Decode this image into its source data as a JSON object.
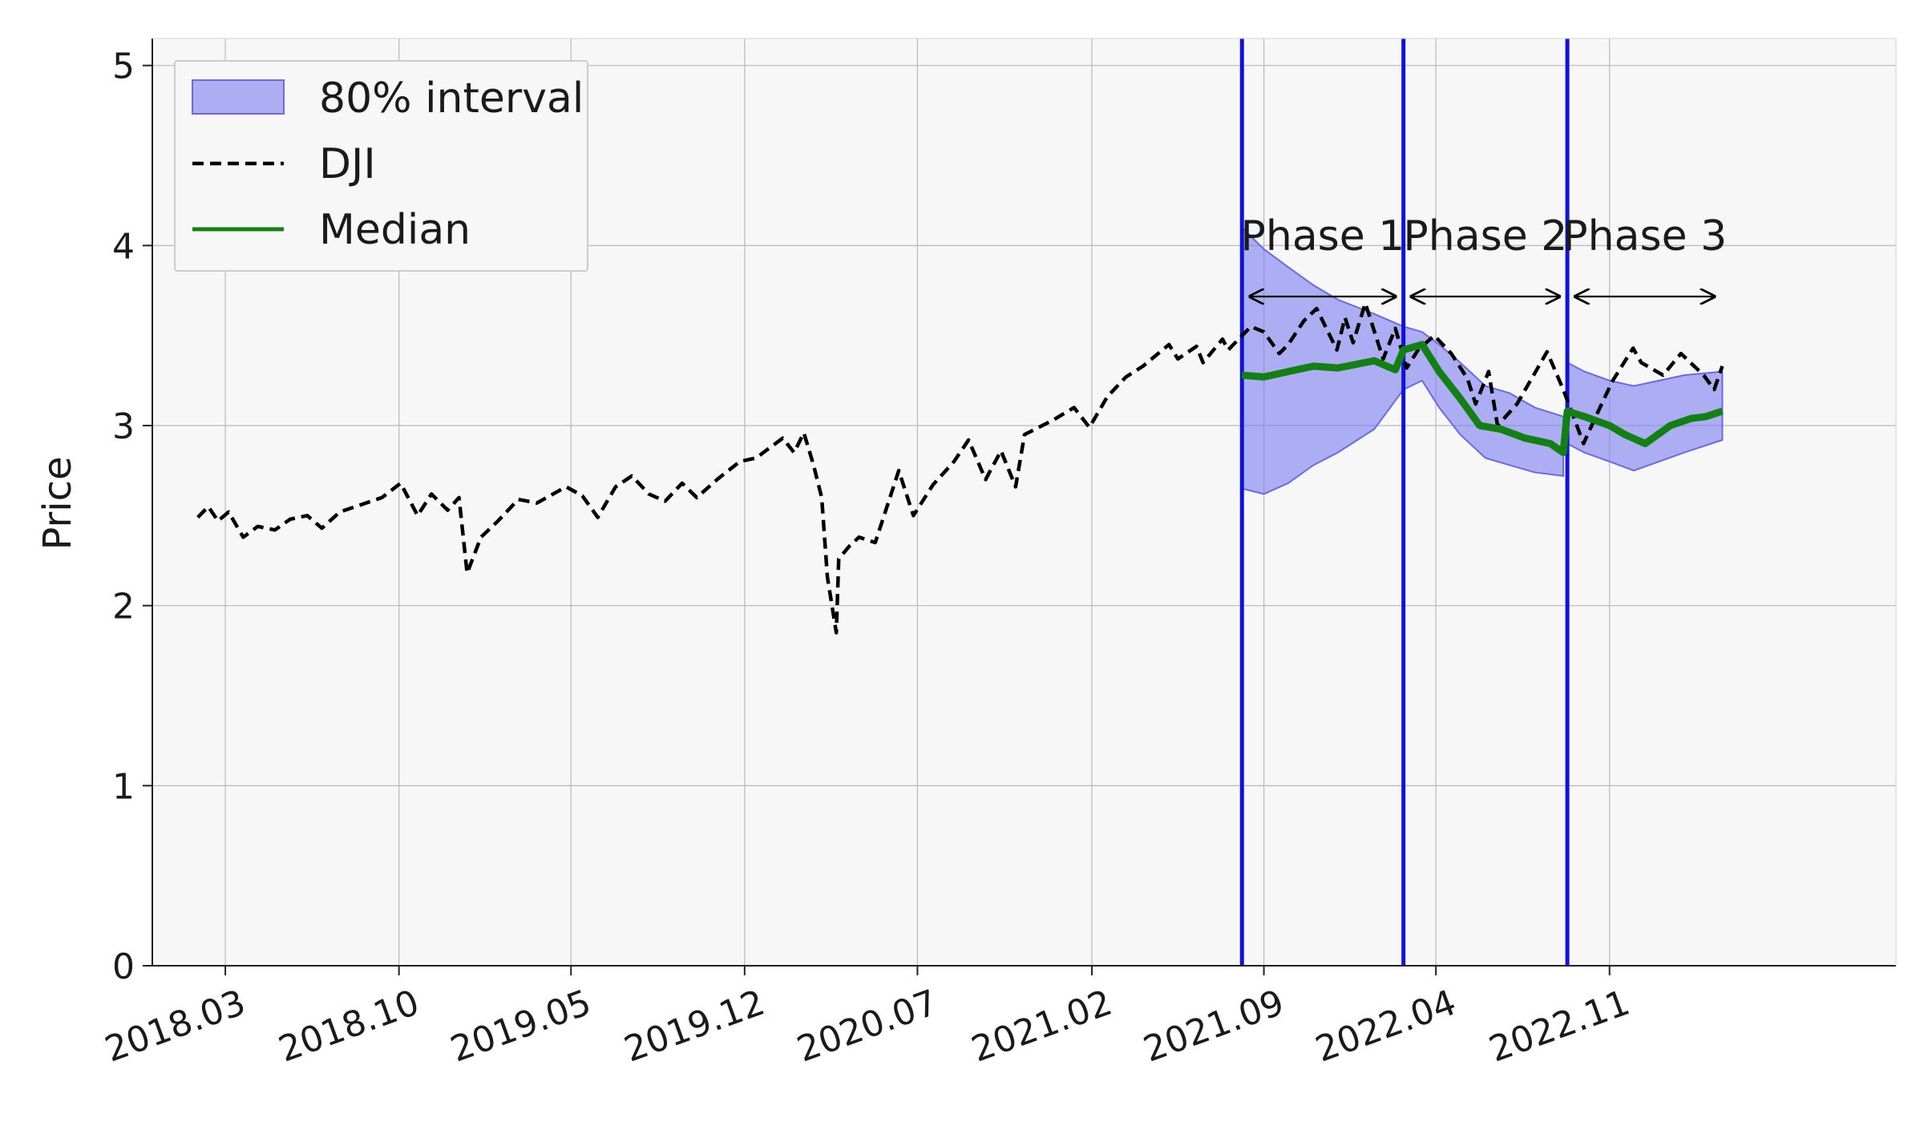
{
  "chart_data": {
    "type": "line",
    "title": "",
    "xlabel": "",
    "ylabel": "Price",
    "ylim": [
      0,
      5.15
    ],
    "xlim": [
      "2017-12-01",
      "2023-10-20"
    ],
    "grid": true,
    "legend_position": "top-left",
    "x_ticks": [
      "2018.03",
      "2018.10",
      "2019.05",
      "2019.12",
      "2020.07",
      "2021.02",
      "2021.09",
      "2022.04",
      "2022.11"
    ],
    "x_tick_dates": [
      "2018-03-01",
      "2018-10-01",
      "2019-05-01",
      "2019-12-01",
      "2020-07-01",
      "2021-02-01",
      "2021-09-01",
      "2022-04-01",
      "2022-11-01"
    ],
    "y_ticks": [
      0,
      1,
      2,
      3,
      4,
      5
    ],
    "legend": [
      {
        "label": "80% interval",
        "kind": "band",
        "color": "#7b7bf0"
      },
      {
        "label": "DJI",
        "kind": "dashed",
        "color": "#000000"
      },
      {
        "label": "Median",
        "kind": "line",
        "color": "#138013"
      }
    ],
    "phase_lines": [
      "2021-08-05",
      "2022-02-20",
      "2022-09-10"
    ],
    "phase_lines_color": "#1010e0",
    "phases": [
      {
        "label": "Phase 1",
        "start": "2021-08-05",
        "end": "2022-02-20"
      },
      {
        "label": "Phase 2",
        "start": "2022-02-20",
        "end": "2022-09-10"
      },
      {
        "label": "Phase 3",
        "start": "2022-09-10",
        "end": "2023-03-20"
      }
    ],
    "series": [
      {
        "name": "DJI",
        "style": "dashed",
        "color": "#000000",
        "points": [
          [
            "2018-01-26",
            2.49
          ],
          [
            "2018-02-08",
            2.55
          ],
          [
            "2018-02-20",
            2.47
          ],
          [
            "2018-03-05",
            2.52
          ],
          [
            "2018-03-23",
            2.38
          ],
          [
            "2018-04-10",
            2.44
          ],
          [
            "2018-05-01",
            2.42
          ],
          [
            "2018-05-20",
            2.48
          ],
          [
            "2018-06-10",
            2.5
          ],
          [
            "2018-06-28",
            2.43
          ],
          [
            "2018-07-20",
            2.52
          ],
          [
            "2018-08-15",
            2.56
          ],
          [
            "2018-09-10",
            2.6
          ],
          [
            "2018-10-03",
            2.68
          ],
          [
            "2018-10-24",
            2.5
          ],
          [
            "2018-11-10",
            2.62
          ],
          [
            "2018-11-30",
            2.53
          ],
          [
            "2018-12-14",
            2.6
          ],
          [
            "2018-12-24",
            2.18
          ],
          [
            "2019-01-10",
            2.38
          ],
          [
            "2019-01-31",
            2.47
          ],
          [
            "2019-02-25",
            2.59
          ],
          [
            "2019-03-20",
            2.57
          ],
          [
            "2019-04-25",
            2.66
          ],
          [
            "2019-05-15",
            2.61
          ],
          [
            "2019-06-03",
            2.49
          ],
          [
            "2019-06-25",
            2.66
          ],
          [
            "2019-07-15",
            2.72
          ],
          [
            "2019-08-05",
            2.62
          ],
          [
            "2019-08-25",
            2.58
          ],
          [
            "2019-09-15",
            2.68
          ],
          [
            "2019-10-03",
            2.6
          ],
          [
            "2019-10-28",
            2.7
          ],
          [
            "2019-11-25",
            2.8
          ],
          [
            "2019-12-15",
            2.82
          ],
          [
            "2020-01-17",
            2.93
          ],
          [
            "2020-01-31",
            2.85
          ],
          [
            "2020-02-12",
            2.96
          ],
          [
            "2020-02-24",
            2.78
          ],
          [
            "2020-03-05",
            2.6
          ],
          [
            "2020-03-12",
            2.16
          ],
          [
            "2020-03-23",
            1.85
          ],
          [
            "2020-03-26",
            2.26
          ],
          [
            "2020-04-08",
            2.33
          ],
          [
            "2020-04-20",
            2.38
          ],
          [
            "2020-05-10",
            2.35
          ],
          [
            "2020-06-08",
            2.75
          ],
          [
            "2020-06-26",
            2.5
          ],
          [
            "2020-07-20",
            2.67
          ],
          [
            "2020-08-15",
            2.8
          ],
          [
            "2020-09-02",
            2.92
          ],
          [
            "2020-09-23",
            2.7
          ],
          [
            "2020-10-12",
            2.86
          ],
          [
            "2020-10-30",
            2.66
          ],
          [
            "2020-11-10",
            2.95
          ],
          [
            "2020-12-15",
            3.03
          ],
          [
            "2021-01-10",
            3.1
          ],
          [
            "2021-01-29",
            2.99
          ],
          [
            "2021-02-20",
            3.16
          ],
          [
            "2021-03-15",
            3.27
          ],
          [
            "2021-04-05",
            3.33
          ],
          [
            "2021-05-07",
            3.45
          ],
          [
            "2021-05-18",
            3.37
          ],
          [
            "2021-06-10",
            3.44
          ],
          [
            "2021-06-18",
            3.35
          ],
          [
            "2021-07-12",
            3.48
          ],
          [
            "2021-07-19",
            3.42
          ],
          [
            "2021-08-16",
            3.55
          ],
          [
            "2021-09-01",
            3.52
          ],
          [
            "2021-09-20",
            3.4
          ],
          [
            "2021-10-01",
            3.45
          ],
          [
            "2021-10-20",
            3.58
          ],
          [
            "2021-11-05",
            3.65
          ],
          [
            "2021-11-30",
            3.42
          ],
          [
            "2021-12-10",
            3.6
          ],
          [
            "2021-12-20",
            3.46
          ],
          [
            "2022-01-04",
            3.68
          ],
          [
            "2022-01-26",
            3.37
          ],
          [
            "2022-02-10",
            3.54
          ],
          [
            "2022-02-24",
            3.32
          ],
          [
            "2022-03-10",
            3.42
          ],
          [
            "2022-03-30",
            3.5
          ],
          [
            "2022-04-20",
            3.4
          ],
          [
            "2022-05-10",
            3.26
          ],
          [
            "2022-05-20",
            3.12
          ],
          [
            "2022-06-05",
            3.3
          ],
          [
            "2022-06-16",
            3.0
          ],
          [
            "2022-07-10",
            3.12
          ],
          [
            "2022-08-16",
            3.41
          ],
          [
            "2022-09-05",
            3.2
          ],
          [
            "2022-09-30",
            2.9
          ],
          [
            "2022-10-15",
            3.05
          ],
          [
            "2022-11-05",
            3.25
          ],
          [
            "2022-11-30",
            3.43
          ],
          [
            "2022-12-10",
            3.35
          ],
          [
            "2023-01-06",
            3.28
          ],
          [
            "2023-01-28",
            3.4
          ],
          [
            "2023-02-25",
            3.28
          ],
          [
            "2023-03-10",
            3.2
          ],
          [
            "2023-03-20",
            3.33
          ]
        ]
      },
      {
        "name": "Median",
        "style": "solid",
        "color": "#138013",
        "points": [
          [
            "2021-08-05",
            3.28
          ],
          [
            "2021-09-01",
            3.27
          ],
          [
            "2021-10-01",
            3.3
          ],
          [
            "2021-11-01",
            3.33
          ],
          [
            "2021-12-01",
            3.32
          ],
          [
            "2022-01-15",
            3.36
          ],
          [
            "2022-02-10",
            3.31
          ],
          [
            "2022-02-20",
            3.42
          ],
          [
            "2022-03-15",
            3.45
          ],
          [
            "2022-04-05",
            3.3
          ],
          [
            "2022-05-01",
            3.15
          ],
          [
            "2022-05-25",
            3.0
          ],
          [
            "2022-06-20",
            2.98
          ],
          [
            "2022-07-20",
            2.93
          ],
          [
            "2022-08-20",
            2.9
          ],
          [
            "2022-09-05",
            2.85
          ],
          [
            "2022-09-10",
            3.08
          ],
          [
            "2022-10-01",
            3.05
          ],
          [
            "2022-11-01",
            3.0
          ],
          [
            "2022-11-20",
            2.95
          ],
          [
            "2022-12-15",
            2.9
          ],
          [
            "2023-01-15",
            3.0
          ],
          [
            "2023-02-10",
            3.04
          ],
          [
            "2023-02-28",
            3.05
          ],
          [
            "2023-03-20",
            3.08
          ]
        ]
      },
      {
        "name": "80% interval",
        "style": "band",
        "color": "#7b7bf0",
        "points": [
          [
            "2021-08-05",
            2.65,
            4.1
          ],
          [
            "2021-09-01",
            2.62,
            3.98
          ],
          [
            "2021-10-01",
            2.68,
            3.88
          ],
          [
            "2021-11-01",
            2.78,
            3.78
          ],
          [
            "2021-12-01",
            2.85,
            3.7
          ],
          [
            "2022-01-15",
            2.98,
            3.62
          ],
          [
            "2022-02-20",
            3.2,
            3.55
          ],
          [
            "2022-03-15",
            3.25,
            3.52
          ],
          [
            "2022-04-05",
            3.1,
            3.45
          ],
          [
            "2022-05-01",
            2.95,
            3.35
          ],
          [
            "2022-06-01",
            2.82,
            3.22
          ],
          [
            "2022-07-01",
            2.78,
            3.18
          ],
          [
            "2022-08-01",
            2.74,
            3.1
          ],
          [
            "2022-09-05",
            2.72,
            3.05
          ],
          [
            "2022-09-10",
            2.9,
            3.35
          ],
          [
            "2022-10-01",
            2.85,
            3.3
          ],
          [
            "2022-11-01",
            2.8,
            3.25
          ],
          [
            "2022-12-01",
            2.75,
            3.22
          ],
          [
            "2023-01-01",
            2.8,
            3.25
          ],
          [
            "2023-02-01",
            2.85,
            3.28
          ],
          [
            "2023-03-20",
            2.92,
            3.3
          ]
        ]
      }
    ]
  }
}
